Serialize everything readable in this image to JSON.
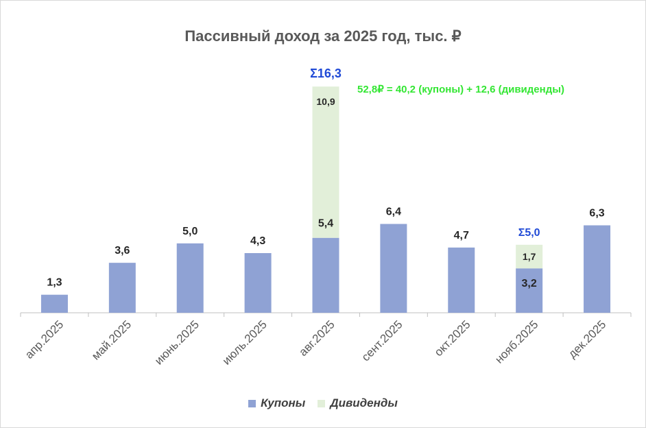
{
  "chart_data": {
    "type": "bar",
    "stacked": true,
    "title": "Пассивный доход за 2025 год, тыс. ₽",
    "categories": [
      "апр.2025",
      "май.2025",
      "июнь.2025",
      "июль.2025",
      "авг.2025",
      "сент.2025",
      "окт.2025",
      "нояб.2025",
      "дек.2025"
    ],
    "series": [
      {
        "name": "Купоны",
        "color": "#8fa2d4",
        "values": [
          1.3,
          3.6,
          5.0,
          4.3,
          5.4,
          6.4,
          4.7,
          3.2,
          6.3
        ],
        "labels": [
          "1,3",
          "3,6",
          "5,0",
          "4,3",
          "5,4",
          "6,4",
          "4,7",
          "3,2",
          "6,3"
        ]
      },
      {
        "name": "Дивиденды",
        "color": "#e2efd9",
        "values": [
          0,
          0,
          0,
          0,
          10.9,
          0,
          0,
          1.7,
          0
        ],
        "labels": [
          "",
          "",
          "",
          "",
          "10,9",
          "",
          "",
          "1,7",
          ""
        ]
      }
    ],
    "totals": [
      "",
      "",
      "",
      "",
      "Σ16,3",
      "",
      "",
      "Σ5,0",
      ""
    ],
    "annotation": "52,8₽ = 40,2 (купоны) + 12,6 (дивиденды)",
    "ylim": [
      0,
      17
    ],
    "grid": false,
    "legend_position": "bottom",
    "xlabel": "",
    "ylabel": ""
  }
}
